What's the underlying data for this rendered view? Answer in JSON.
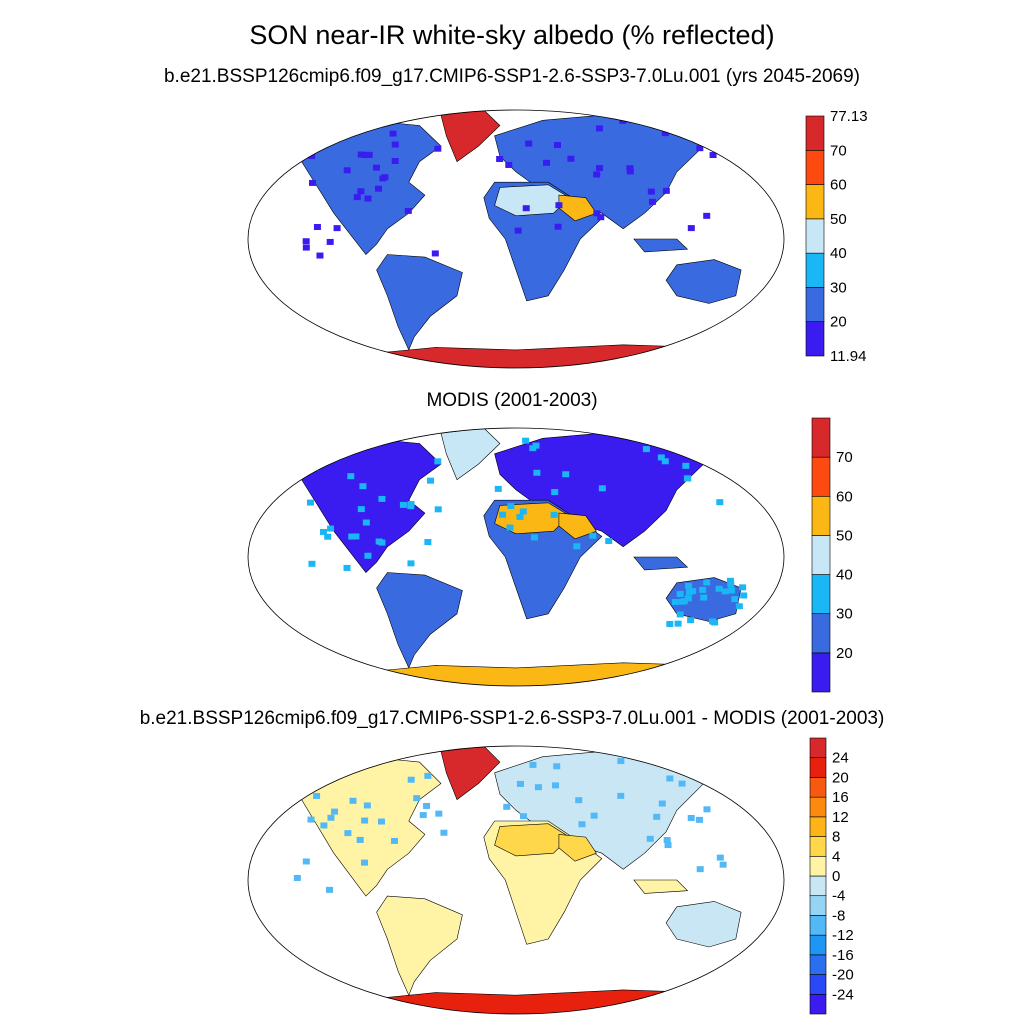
{
  "title": "SON near-IR white-sky albedo (% reflected)",
  "panels": [
    {
      "id": "model",
      "title": "b.e21.BSSP126cmip6.f09_g17.CMIP6-SSP1-2.6-SSP3-7.0Lu.001 (yrs 2045-2069)",
      "colorbar": {
        "colors": [
          "#3a1cf0",
          "#3a6ae0",
          "#1ab6f6",
          "#c7e7f6",
          "#fbb714",
          "#fc4a10",
          "#d7282b"
        ],
        "labels": [
          "11.94",
          "20",
          "30",
          "40",
          "50",
          "60",
          "70",
          "77.13"
        ]
      }
    },
    {
      "id": "obs",
      "title": "MODIS (2001-2003)",
      "colorbar": {
        "colors": [
          "#3a1cf0",
          "#3a6ae0",
          "#1ab6f6",
          "#c7e7f6",
          "#fbb714",
          "#fc4a10",
          "#d7282b"
        ],
        "labels": [
          "20",
          "30",
          "40",
          "50",
          "60",
          "70"
        ]
      }
    },
    {
      "id": "diff",
      "title": "b.e21.BSSP126cmip6.f09_g17.CMIP6-SSP1-2.6-SSP3-7.0Lu.001 - MODIS (2001-2003)",
      "colorbar": {
        "colors": [
          "#3a1cf0",
          "#2a48f5",
          "#2a6ff0",
          "#1d96f6",
          "#52b9f6",
          "#96d4f4",
          "#c9e6f5",
          "#fff4a6",
          "#fed84a",
          "#fdb418",
          "#fc8a0e",
          "#f65a10",
          "#e8200e",
          "#d7282b"
        ],
        "labels": [
          "24",
          "20",
          "16",
          "12",
          "8",
          "4",
          "0",
          "-4",
          "-8",
          "-12",
          "-16",
          "-20",
          "-24"
        ]
      }
    }
  ]
}
